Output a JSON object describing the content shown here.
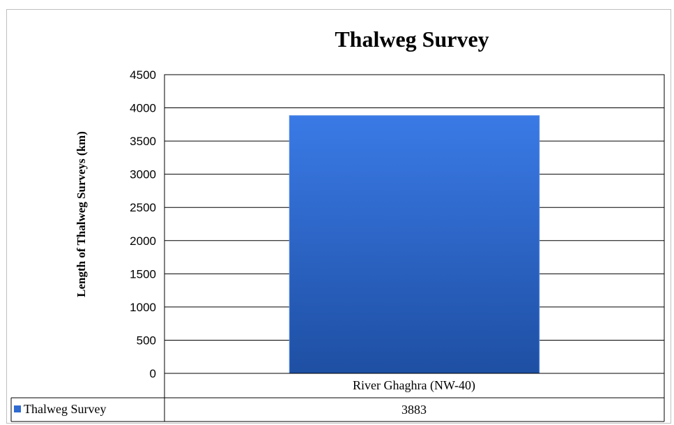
{
  "chart_data": {
    "type": "bar",
    "title": "Thalweg Survey",
    "ylabel": "Length of Thalweg Surveys (km)",
    "xlabel": "",
    "categories": [
      "River Ghaghra (NW-40)"
    ],
    "series": [
      {
        "name": "Thalweg Survey",
        "values": [
          3883
        ]
      }
    ],
    "ylim": [
      0,
      4500
    ],
    "yticks": [
      "0",
      "500",
      "1000",
      "1500",
      "2000",
      "2500",
      "3000",
      "3500",
      "4000",
      "4500"
    ],
    "grid": true,
    "legend": "data-table-left",
    "data_table": [
      {
        "series": "Thalweg Survey",
        "values": [
          "3883"
        ]
      }
    ],
    "colors": {
      "bar_top": "#3a7ae6",
      "bar_bottom": "#1e4fa3",
      "legend_key": "#2f6bd0"
    }
  }
}
